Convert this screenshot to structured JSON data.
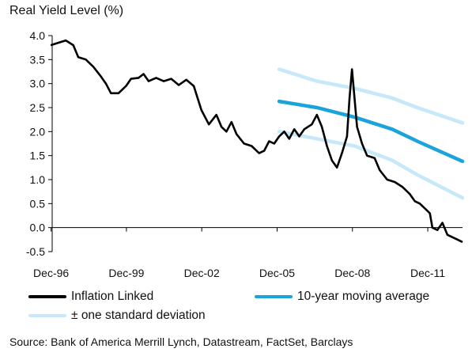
{
  "chart_data": {
    "type": "line",
    "title": "Real Yield Level (%)",
    "xlabel": "",
    "ylabel": "",
    "x_ticks": [
      "Dec-96",
      "Dec-99",
      "Dec-02",
      "Dec-05",
      "Dec-08",
      "Dec-11"
    ],
    "x_range": [
      1996.96,
      2013.3
    ],
    "ylim": [
      -0.5,
      4.0
    ],
    "y_ticks": [
      "4.0",
      "3.5",
      "3.0",
      "2.5",
      "2.0",
      "1.5",
      "1.0",
      "0.5",
      "0.0",
      "-0.5"
    ],
    "grid": false,
    "legend_position": "bottom",
    "source": "Source: Bank of America Merrill Lynch, Datastream, FactSet, Barclays",
    "series": [
      {
        "name": "Inflation Linked",
        "color": "#000000",
        "points": [
          [
            1996.9,
            3.8
          ],
          [
            1997.2,
            3.85
          ],
          [
            1997.5,
            3.9
          ],
          [
            1997.8,
            3.8
          ],
          [
            1998.0,
            3.55
          ],
          [
            1998.3,
            3.5
          ],
          [
            1998.6,
            3.35
          ],
          [
            1998.9,
            3.15
          ],
          [
            1999.1,
            3.0
          ],
          [
            1999.3,
            2.8
          ],
          [
            1999.6,
            2.8
          ],
          [
            1999.9,
            2.95
          ],
          [
            2000.1,
            3.1
          ],
          [
            2000.4,
            3.12
          ],
          [
            2000.6,
            3.2
          ],
          [
            2000.8,
            3.05
          ],
          [
            2001.1,
            3.12
          ],
          [
            2001.4,
            3.05
          ],
          [
            2001.7,
            3.1
          ],
          [
            2002.0,
            2.97
          ],
          [
            2002.3,
            3.08
          ],
          [
            2002.6,
            2.95
          ],
          [
            2002.9,
            2.45
          ],
          [
            2003.2,
            2.15
          ],
          [
            2003.5,
            2.35
          ],
          [
            2003.7,
            2.1
          ],
          [
            2003.9,
            2.0
          ],
          [
            2004.1,
            2.2
          ],
          [
            2004.3,
            1.95
          ],
          [
            2004.6,
            1.75
          ],
          [
            2004.9,
            1.7
          ],
          [
            2005.2,
            1.55
          ],
          [
            2005.4,
            1.6
          ],
          [
            2005.6,
            1.8
          ],
          [
            2005.8,
            1.75
          ],
          [
            2006.0,
            1.9
          ],
          [
            2006.2,
            2.0
          ],
          [
            2006.4,
            1.85
          ],
          [
            2006.6,
            2.05
          ],
          [
            2006.8,
            1.9
          ],
          [
            2007.0,
            2.05
          ],
          [
            2007.3,
            2.15
          ],
          [
            2007.5,
            2.35
          ],
          [
            2007.7,
            2.1
          ],
          [
            2007.9,
            1.7
          ],
          [
            2008.1,
            1.4
          ],
          [
            2008.3,
            1.25
          ],
          [
            2008.5,
            1.55
          ],
          [
            2008.7,
            1.9
          ],
          [
            2008.8,
            2.7
          ],
          [
            2008.9,
            3.3
          ],
          [
            2009.0,
            2.7
          ],
          [
            2009.1,
            2.1
          ],
          [
            2009.3,
            1.75
          ],
          [
            2009.5,
            1.5
          ],
          [
            2009.8,
            1.45
          ],
          [
            2010.0,
            1.2
          ],
          [
            2010.3,
            1.0
          ],
          [
            2010.6,
            0.95
          ],
          [
            2010.9,
            0.85
          ],
          [
            2011.2,
            0.7
          ],
          [
            2011.4,
            0.55
          ],
          [
            2011.6,
            0.5
          ],
          [
            2011.8,
            0.4
          ],
          [
            2012.0,
            0.3
          ],
          [
            2012.1,
            0.0
          ],
          [
            2012.3,
            -0.05
          ],
          [
            2012.5,
            0.1
          ],
          [
            2012.7,
            -0.15
          ],
          [
            2012.9,
            -0.2
          ],
          [
            2013.1,
            -0.25
          ],
          [
            2013.3,
            -0.3
          ]
        ]
      },
      {
        "name": "10-year moving average",
        "color": "#1ba3dc",
        "points": [
          [
            2006.0,
            2.63
          ],
          [
            2007.5,
            2.5
          ],
          [
            2009.0,
            2.3
          ],
          [
            2010.5,
            2.05
          ],
          [
            2011.5,
            1.8
          ],
          [
            2013.3,
            1.38
          ]
        ]
      },
      {
        "name": "± one standard deviation",
        "color": "#c7e8f8",
        "upper": [
          [
            2006.0,
            3.3
          ],
          [
            2007.5,
            3.05
          ],
          [
            2009.0,
            2.9
          ],
          [
            2010.5,
            2.7
          ],
          [
            2011.5,
            2.5
          ],
          [
            2013.3,
            2.18
          ]
        ],
        "lower": [
          [
            2006.0,
            2.0
          ],
          [
            2007.5,
            1.85
          ],
          [
            2009.0,
            1.7
          ],
          [
            2010.5,
            1.4
          ],
          [
            2011.5,
            1.1
          ],
          [
            2013.3,
            0.62
          ]
        ]
      }
    ]
  }
}
